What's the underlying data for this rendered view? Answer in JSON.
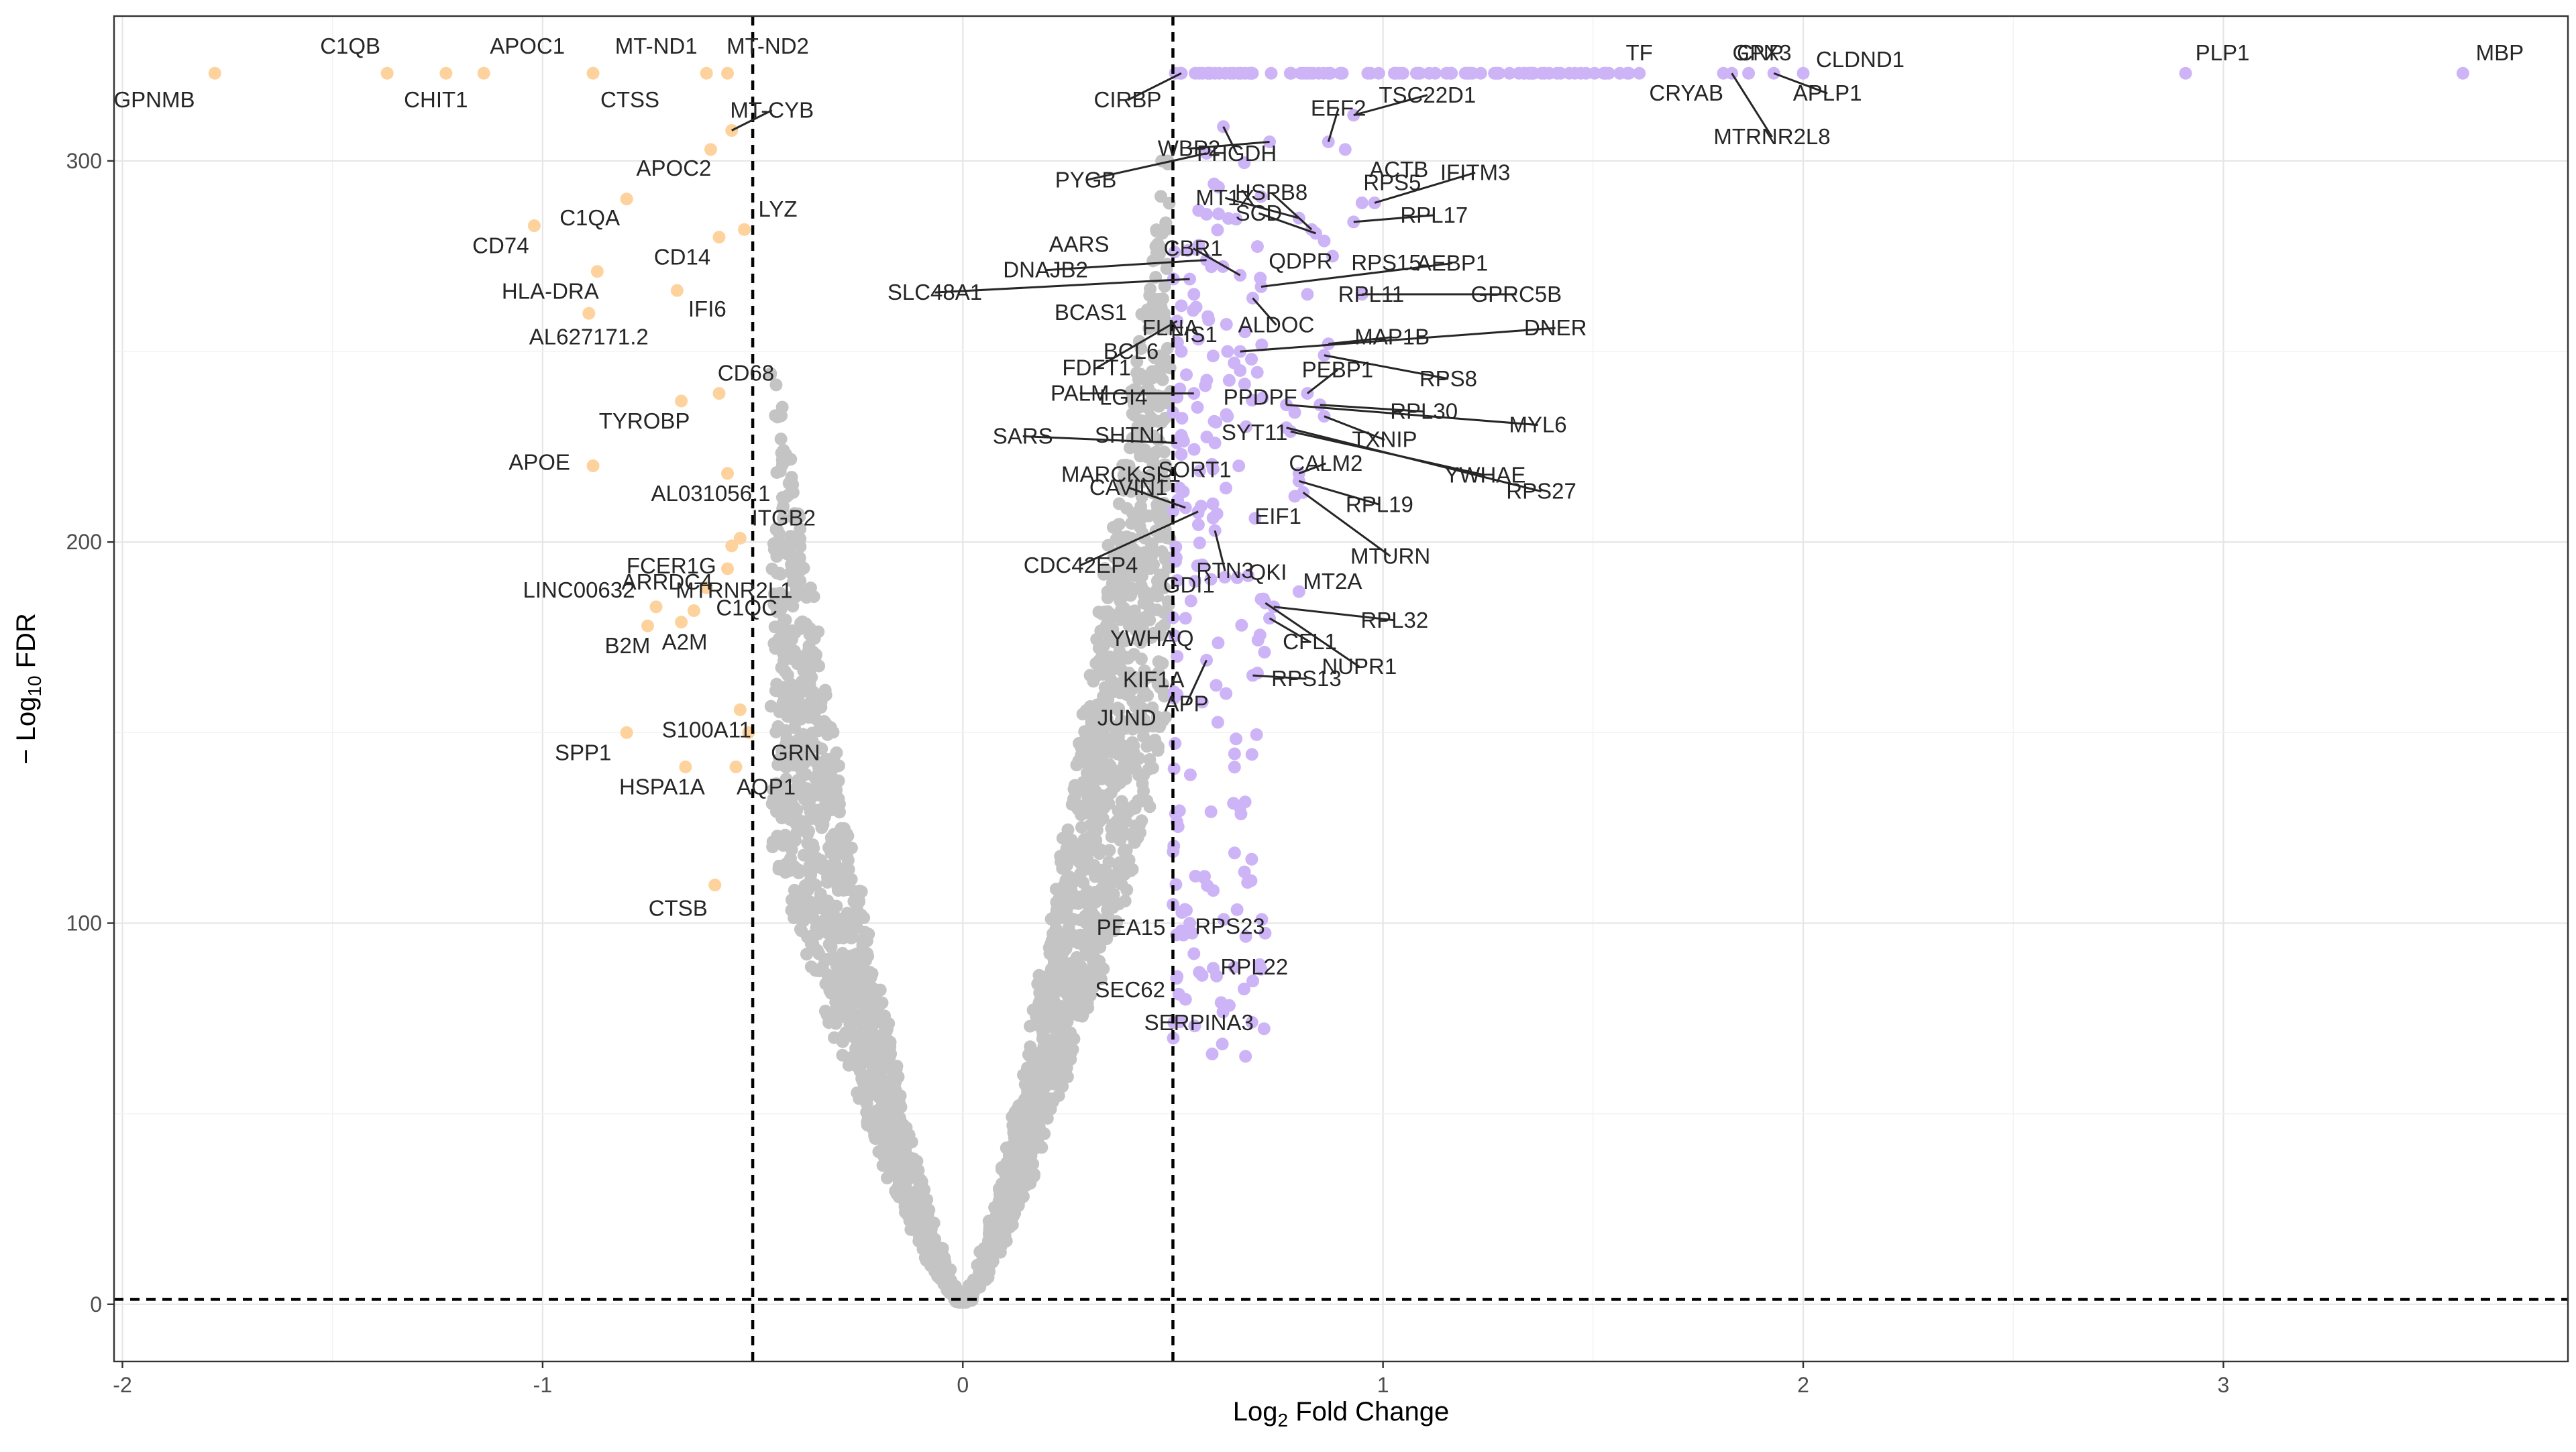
{
  "chart_data": {
    "type": "scatter",
    "title": "",
    "xlabel_main": "Log",
    "xlabel_sub": "2",
    "xlabel_rest": " Fold Change",
    "ylabel_main": "− Log",
    "ylabel_sub": "10",
    "ylabel_rest": " FDR",
    "xlim": [
      -2.02,
      3.82
    ],
    "ylim": [
      -15,
      338
    ],
    "x_ticks": [
      -2,
      -1,
      0,
      1,
      2,
      3
    ],
    "x_tick_labels": [
      "-2",
      "-1",
      "0",
      "1",
      "2",
      "3"
    ],
    "y_ticks": [
      0,
      100,
      200,
      300
    ],
    "y_tick_labels": [
      "0",
      "100",
      "200",
      "300"
    ],
    "grid": true,
    "thresholds": {
      "x": [
        -0.5,
        0.5
      ],
      "y": 1.3
    },
    "colors": {
      "down": "#fdd29c",
      "up": "#cdb4f7",
      "ns": "#c4c4c4"
    },
    "labeled_points": [
      {
        "gene": "GPNMB",
        "x": -1.78,
        "y": 323,
        "group": "down"
      },
      {
        "gene": "C1QB",
        "x": -1.37,
        "y": 323,
        "group": "down"
      },
      {
        "gene": "CHIT1",
        "x": -1.23,
        "y": 323,
        "group": "down"
      },
      {
        "gene": "APOC1",
        "x": -1.14,
        "y": 323,
        "group": "down"
      },
      {
        "gene": "CTSS",
        "x": -0.88,
        "y": 323,
        "group": "down"
      },
      {
        "gene": "MT-ND1",
        "x": -0.61,
        "y": 323,
        "group": "down"
      },
      {
        "gene": "MT-ND2",
        "x": -0.56,
        "y": 323,
        "group": "down"
      },
      {
        "gene": "MT-CYB",
        "x": -0.55,
        "y": 308,
        "group": "down"
      },
      {
        "gene": "APOC2",
        "x": -0.6,
        "y": 303,
        "group": "down"
      },
      {
        "gene": "C1QA",
        "x": -0.8,
        "y": 290,
        "group": "down"
      },
      {
        "gene": "CD74",
        "x": -1.02,
        "y": 283,
        "group": "down"
      },
      {
        "gene": "LYZ",
        "x": -0.52,
        "y": 282,
        "group": "down"
      },
      {
        "gene": "CD14",
        "x": -0.58,
        "y": 280,
        "group": "down"
      },
      {
        "gene": "HLA-DRA",
        "x": -0.87,
        "y": 271,
        "group": "down"
      },
      {
        "gene": "IFI6",
        "x": -0.68,
        "y": 266,
        "group": "down"
      },
      {
        "gene": "AL627171.2",
        "x": -0.89,
        "y": 260,
        "group": "down"
      },
      {
        "gene": "CD68",
        "x": -0.58,
        "y": 239,
        "group": "down"
      },
      {
        "gene": "TYROBP",
        "x": -0.67,
        "y": 237,
        "group": "down"
      },
      {
        "gene": "APOE",
        "x": -0.88,
        "y": 220,
        "group": "down"
      },
      {
        "gene": "AL031056.1",
        "x": -0.56,
        "y": 218,
        "group": "down"
      },
      {
        "gene": "ITGB2",
        "x": -0.53,
        "y": 201,
        "group": "down"
      },
      {
        "gene": "FCER1G",
        "x": -0.55,
        "y": 199,
        "group": "down"
      },
      {
        "gene": "ARRDC4",
        "x": -0.56,
        "y": 193,
        "group": "down"
      },
      {
        "gene": "C1QC",
        "x": -0.61,
        "y": 188,
        "group": "down"
      },
      {
        "gene": "LINC00632",
        "x": -0.73,
        "y": 183,
        "group": "down"
      },
      {
        "gene": "MTRNR2L1",
        "x": -0.64,
        "y": 182,
        "group": "down"
      },
      {
        "gene": "A2M",
        "x": -0.67,
        "y": 179,
        "group": "down"
      },
      {
        "gene": "B2M",
        "x": -0.75,
        "y": 178,
        "group": "down"
      },
      {
        "gene": "S100A11",
        "x": -0.53,
        "y": 156,
        "group": "down"
      },
      {
        "gene": "SPP1",
        "x": -0.8,
        "y": 150,
        "group": "down"
      },
      {
        "gene": "GRN",
        "x": -0.51,
        "y": 150,
        "group": "down"
      },
      {
        "gene": "HSPA1A",
        "x": -0.66,
        "y": 141,
        "group": "down"
      },
      {
        "gene": "AQP1",
        "x": -0.54,
        "y": 141,
        "group": "down"
      },
      {
        "gene": "CTSB",
        "x": -0.59,
        "y": 110,
        "group": "down"
      },
      {
        "gene": "CIRBP",
        "x": 0.52,
        "y": 323,
        "group": "up"
      },
      {
        "gene": "PHGDH",
        "x": 0.62,
        "y": 309,
        "group": "up"
      },
      {
        "gene": "EEF2",
        "x": 0.87,
        "y": 305,
        "group": "up"
      },
      {
        "gene": "TSC22D1",
        "x": 0.93,
        "y": 312,
        "group": "up"
      },
      {
        "gene": "ACTB",
        "x": 0.91,
        "y": 303,
        "group": "up"
      },
      {
        "gene": "WBP2",
        "x": 0.73,
        "y": 305,
        "group": "up"
      },
      {
        "gene": "PYGB",
        "x": 0.58,
        "y": 302,
        "group": "up"
      },
      {
        "gene": "TF",
        "x": 1.53,
        "y": 323,
        "group": "up"
      },
      {
        "gene": "CRYAB",
        "x": 1.61,
        "y": 323,
        "group": "up"
      },
      {
        "gene": "CNP",
        "x": 1.81,
        "y": 323,
        "group": "up"
      },
      {
        "gene": "GPX3",
        "x": 1.87,
        "y": 323,
        "group": "up"
      },
      {
        "gene": "MTRNR2L8",
        "x": 1.83,
        "y": 323,
        "group": "up"
      },
      {
        "gene": "CLDND1",
        "x": 2.0,
        "y": 323,
        "group": "up"
      },
      {
        "gene": "APLP1",
        "x": 1.93,
        "y": 323,
        "group": "up"
      },
      {
        "gene": "PLP1",
        "x": 2.91,
        "y": 323,
        "group": "up"
      },
      {
        "gene": "MBP",
        "x": 3.57,
        "y": 323,
        "group": "up"
      },
      {
        "gene": "MT1X",
        "x": 0.8,
        "y": 285,
        "group": "up"
      },
      {
        "gene": "HSPB8",
        "x": 0.83,
        "y": 282,
        "group": "up"
      },
      {
        "gene": "RPS5",
        "x": 0.95,
        "y": 289,
        "group": "up"
      },
      {
        "gene": "IFITM3",
        "x": 0.98,
        "y": 289,
        "group": "up"
      },
      {
        "gene": "AARS",
        "x": 0.58,
        "y": 286,
        "group": "up"
      },
      {
        "gene": "SCD",
        "x": 0.84,
        "y": 281,
        "group": "up"
      },
      {
        "gene": "RPL17",
        "x": 0.93,
        "y": 284,
        "group": "up"
      },
      {
        "gene": "QDPR",
        "x": 0.86,
        "y": 279,
        "group": "up"
      },
      {
        "gene": "DNAJB2",
        "x": 0.58,
        "y": 274,
        "group": "up"
      },
      {
        "gene": "CBR1",
        "x": 0.66,
        "y": 270,
        "group": "up"
      },
      {
        "gene": "RPS15",
        "x": 0.88,
        "y": 275,
        "group": "up"
      },
      {
        "gene": "AEBP1",
        "x": 0.71,
        "y": 267,
        "group": "up"
      },
      {
        "gene": "SLC48A1",
        "x": 0.54,
        "y": 269,
        "group": "up"
      },
      {
        "gene": "FLNA",
        "x": 0.55,
        "y": 265,
        "group": "up"
      },
      {
        "gene": "ALDOC",
        "x": 0.69,
        "y": 264,
        "group": "up"
      },
      {
        "gene": "RPL11",
        "x": 0.82,
        "y": 265,
        "group": "up"
      },
      {
        "gene": "GPRC5B",
        "x": 0.95,
        "y": 265,
        "group": "up"
      },
      {
        "gene": "BCAS1",
        "x": 0.52,
        "y": 262,
        "group": "up"
      },
      {
        "gene": "FIS1",
        "x": 0.63,
        "y": 250,
        "group": "up"
      },
      {
        "gene": "MAP1B",
        "x": 0.87,
        "y": 252,
        "group": "up"
      },
      {
        "gene": "DNER",
        "x": 0.66,
        "y": 250,
        "group": "up"
      },
      {
        "gene": "FDFT1",
        "x": 0.51,
        "y": 258,
        "group": "up"
      },
      {
        "gene": "BCL6",
        "x": 0.52,
        "y": 250,
        "group": "up"
      },
      {
        "gene": "PPDPF",
        "x": 0.66,
        "y": 245,
        "group": "up"
      },
      {
        "gene": "PEBP1",
        "x": 0.82,
        "y": 239,
        "group": "up"
      },
      {
        "gene": "RPS8",
        "x": 0.86,
        "y": 249,
        "group": "up"
      },
      {
        "gene": "PALM",
        "x": 0.55,
        "y": 239,
        "group": "up"
      },
      {
        "gene": "LGI4",
        "x": 0.51,
        "y": 238,
        "group": "up"
      },
      {
        "gene": "RPL30",
        "x": 0.85,
        "y": 236,
        "group": "up"
      },
      {
        "gene": "MYL6",
        "x": 0.77,
        "y": 236,
        "group": "up"
      },
      {
        "gene": "SYT11",
        "x": 0.79,
        "y": 234,
        "group": "up"
      },
      {
        "gene": "TXNIP",
        "x": 0.86,
        "y": 233,
        "group": "up"
      },
      {
        "gene": "SARS",
        "x": 0.51,
        "y": 226,
        "group": "up"
      },
      {
        "gene": "SHTN1",
        "x": 0.52,
        "y": 228,
        "group": "up"
      },
      {
        "gene": "YWHAE",
        "x": 0.78,
        "y": 229,
        "group": "up"
      },
      {
        "gene": "SORT1",
        "x": 0.6,
        "y": 226,
        "group": "up"
      },
      {
        "gene": "RPS27",
        "x": 0.77,
        "y": 230,
        "group": "up"
      },
      {
        "gene": "CALM2",
        "x": 0.8,
        "y": 218,
        "group": "up"
      },
      {
        "gene": "MARCKSL1",
        "x": 0.52,
        "y": 223,
        "group": "up"
      },
      {
        "gene": "RPL19",
        "x": 0.8,
        "y": 216,
        "group": "up"
      },
      {
        "gene": "EIF1",
        "x": 0.79,
        "y": 212,
        "group": "up"
      },
      {
        "gene": "MTURN",
        "x": 0.81,
        "y": 213,
        "group": "up"
      },
      {
        "gene": "CAVIN1",
        "x": 0.53,
        "y": 209,
        "group": "up"
      },
      {
        "gene": "RTN3",
        "x": 0.6,
        "y": 203,
        "group": "up"
      },
      {
        "gene": "CDC42EP4",
        "x": 0.56,
        "y": 208,
        "group": "up"
      },
      {
        "gene": "GDI1",
        "x": 0.57,
        "y": 194,
        "group": "up"
      },
      {
        "gene": "QKI",
        "x": 0.71,
        "y": 185,
        "group": "up"
      },
      {
        "gene": "MT2A",
        "x": 0.8,
        "y": 187,
        "group": "up"
      },
      {
        "gene": "RPL32",
        "x": 0.74,
        "y": 183,
        "group": "up"
      },
      {
        "gene": "YWHAQ",
        "x": 0.53,
        "y": 180,
        "group": "up"
      },
      {
        "gene": "CFL1",
        "x": 0.73,
        "y": 180,
        "group": "up"
      },
      {
        "gene": "NUPR1",
        "x": 0.72,
        "y": 184,
        "group": "up"
      },
      {
        "gene": "KIF1A",
        "x": 0.51,
        "y": 170,
        "group": "up"
      },
      {
        "gene": "RPS13",
        "x": 0.69,
        "y": 165,
        "group": "up"
      },
      {
        "gene": "JUND",
        "x": 0.51,
        "y": 160,
        "group": "up"
      },
      {
        "gene": "APP",
        "x": 0.58,
        "y": 169,
        "group": "up"
      },
      {
        "gene": "PEA15",
        "x": 0.52,
        "y": 98,
        "group": "up"
      },
      {
        "gene": "RPS23",
        "x": 0.54,
        "y": 100,
        "group": "up"
      },
      {
        "gene": "RPL22",
        "x": 0.55,
        "y": 92,
        "group": "up"
      },
      {
        "gene": "SEC62",
        "x": 0.51,
        "y": 86,
        "group": "up"
      },
      {
        "gene": "SERPINA3",
        "x": 0.53,
        "y": 80,
        "group": "up"
      }
    ]
  }
}
